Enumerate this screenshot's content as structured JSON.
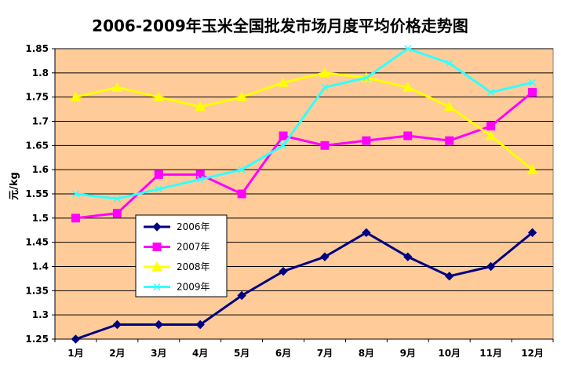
{
  "chart_data": {
    "type": "line",
    "title": "2006-2009年玉米全国批发市场月度平均价格走势图",
    "xlabel": "",
    "ylabel": "元/kg",
    "categories": [
      "1月",
      "2月",
      "3月",
      "4月",
      "5月",
      "6月",
      "7月",
      "8月",
      "9月",
      "10月",
      "11月",
      "12月"
    ],
    "ylim": [
      1.25,
      1.85
    ],
    "yticks": [
      "1.85",
      "1.8",
      "1.75",
      "1.7",
      "1.65",
      "1.6",
      "1.55",
      "1.5",
      "1.45",
      "1.4",
      "1.35",
      "1.3",
      "1.25"
    ],
    "grid": true,
    "legend_position": "lower-left",
    "plot_background": "#FFCC99",
    "series": [
      {
        "name": "2006年",
        "color": "#000080",
        "marker": "diamond",
        "values": [
          1.25,
          1.28,
          1.28,
          1.28,
          1.34,
          1.39,
          1.42,
          1.47,
          1.42,
          1.38,
          1.4,
          1.47
        ]
      },
      {
        "name": "2007年",
        "color": "#FF00FF",
        "marker": "square",
        "values": [
          1.5,
          1.51,
          1.59,
          1.59,
          1.55,
          1.67,
          1.65,
          1.66,
          1.67,
          1.66,
          1.69,
          1.76
        ]
      },
      {
        "name": "2008年",
        "color": "#FFFF00",
        "marker": "triangle",
        "values": [
          1.75,
          1.77,
          1.75,
          1.73,
          1.75,
          1.78,
          1.8,
          1.79,
          1.77,
          1.73,
          1.67,
          1.6
        ]
      },
      {
        "name": "2009年",
        "color": "#33FFFF",
        "marker": "x",
        "values": [
          1.55,
          1.54,
          1.56,
          1.58,
          1.6,
          1.65,
          1.77,
          1.79,
          1.85,
          1.82,
          1.76,
          1.78
        ]
      }
    ]
  }
}
